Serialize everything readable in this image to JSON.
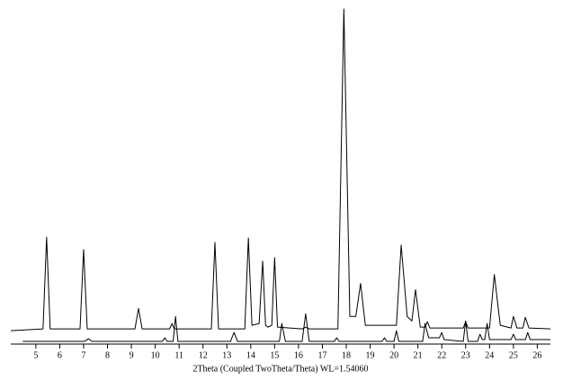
{
  "chart_data": {
    "type": "line",
    "xlabel": "2Theta (Coupled TwoTheta/Theta) WL=1.54060",
    "xlim": [
      3.95,
      26.55
    ],
    "ylim": [
      0,
      380
    ],
    "xticks": [
      5,
      6,
      7,
      8,
      9,
      10,
      11,
      12,
      13,
      14,
      15,
      16,
      17,
      18,
      19,
      20,
      21,
      22,
      23,
      24,
      25,
      26
    ],
    "series": [
      {
        "color": "#000000",
        "x": [
          3.95,
          5.3,
          5.45,
          5.6,
          6.85,
          7.0,
          7.15,
          9.15,
          9.3,
          9.45,
          10.6,
          10.7,
          10.8,
          12.35,
          12.5,
          12.65,
          13.75,
          13.9,
          14.05,
          14.35,
          14.5,
          14.62,
          14.72,
          14.88,
          15.0,
          15.12,
          16.15,
          16.3,
          16.45,
          17.65,
          17.9,
          18.15,
          18.4,
          18.6,
          18.8,
          20.1,
          20.3,
          20.55,
          20.75,
          20.9,
          21.1,
          21.3,
          21.4,
          21.5,
          22.9,
          23.0,
          23.1,
          24.0,
          24.2,
          24.45,
          24.9,
          25.0,
          25.15,
          25.4,
          25.5,
          25.65,
          26.55
        ],
        "values": [
          14,
          16,
          119,
          16,
          16,
          105,
          16,
          16,
          39,
          16,
          16,
          22,
          16,
          16,
          113,
          16,
          16,
          118,
          20,
          22,
          92,
          20,
          18,
          20,
          96,
          18,
          16,
          18,
          16,
          16,
          375,
          30,
          30,
          67,
          20,
          20,
          110,
          30,
          25,
          60,
          18,
          18,
          24,
          17,
          17,
          24,
          17,
          17,
          77,
          20,
          17,
          30,
          17,
          17,
          29,
          17,
          16
        ]
      },
      {
        "color": "#000000",
        "x": [
          4.45,
          7.05,
          7.2,
          7.35,
          10.3,
          10.4,
          10.5,
          10.75,
          10.85,
          10.95,
          13.15,
          13.3,
          13.45,
          15.2,
          15.3,
          15.45,
          16.15,
          16.3,
          16.45,
          17.5,
          17.6,
          17.7,
          19.5,
          19.6,
          19.7,
          20.0,
          20.1,
          20.2,
          21.2,
          21.3,
          21.45,
          21.9,
          22.0,
          22.1,
          22.9,
          23.0,
          23.1,
          23.5,
          23.6,
          23.7,
          23.8,
          23.9,
          24.0,
          24.9,
          25.0,
          25.1,
          25.5,
          25.6,
          25.7,
          26.55
        ],
        "values": [
          2,
          2,
          5,
          2,
          2,
          6,
          2,
          2,
          30,
          2,
          2,
          12,
          2,
          2,
          22,
          2,
          2,
          33,
          2,
          2,
          6,
          2,
          2,
          6,
          2,
          2,
          14,
          2,
          2,
          22,
          6,
          6,
          12,
          4,
          2,
          25,
          2,
          2,
          10,
          4,
          4,
          22,
          4,
          4,
          10,
          4,
          4,
          12,
          4,
          4
        ]
      }
    ]
  }
}
